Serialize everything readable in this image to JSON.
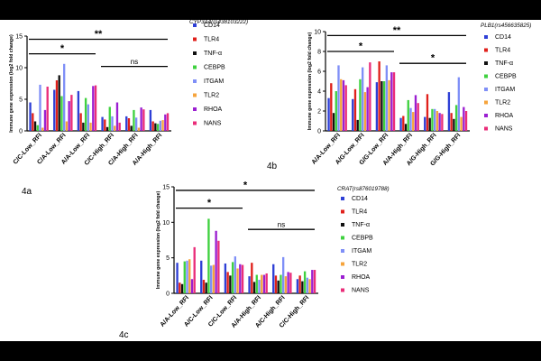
{
  "chart_data": [
    {
      "type": "bar",
      "panel_label": "4a",
      "gene_title": "CYP3A4(rs438103222)",
      "ylabel": "Immune gene expression (log2 fold change)",
      "ylim": [
        0,
        15
      ],
      "yticks": [
        0,
        5,
        10,
        15
      ],
      "categories": [
        "C/C-Low_RFI",
        "C/A-Low_RFI",
        "A/A-Low_RFI",
        "C/C-High_RFI",
        "C/A-High_RFI",
        "A/A-High_RFI"
      ],
      "series": [
        {
          "name": "CD14",
          "color": "#2e3fd6",
          "values": [
            4.5,
            6.5,
            6.3,
            2.2,
            2.3,
            3.3
          ]
        },
        {
          "name": "TLR4",
          "color": "#e0201b",
          "values": [
            2.8,
            8.0,
            2.8,
            1.8,
            2.0,
            1.5
          ]
        },
        {
          "name": "TNF-α",
          "color": "#111111",
          "values": [
            1.5,
            8.8,
            1.3,
            0.6,
            0.8,
            1.2
          ]
        },
        {
          "name": "CEBPB",
          "color": "#3fd13f",
          "values": [
            0.9,
            5.5,
            5.2,
            3.8,
            3.3,
            1.1
          ]
        },
        {
          "name": "ITGAM",
          "color": "#7f8ff7",
          "values": [
            7.3,
            10.6,
            4.2,
            2.3,
            2.1,
            1.6
          ]
        },
        {
          "name": "TLR2",
          "color": "#f6a43c",
          "values": [
            0.5,
            1.5,
            1.3,
            0.8,
            0.5,
            1.7
          ]
        },
        {
          "name": "RHOA",
          "color": "#9b1fd1",
          "values": [
            3.3,
            4.7,
            7.1,
            4.5,
            3.7,
            2.6
          ]
        },
        {
          "name": "NANS",
          "color": "#ea2d79",
          "values": [
            7.0,
            5.7,
            7.2,
            1.3,
            3.4,
            2.8
          ]
        }
      ],
      "annotations": [
        {
          "label": "**",
          "from": 0,
          "to": 5,
          "y": 14.5
        },
        {
          "label": "*",
          "from": 0,
          "to": 2,
          "y": 12.2
        },
        {
          "label": "ns",
          "from": 3,
          "to": 5,
          "y": 10.2
        }
      ]
    },
    {
      "type": "bar",
      "panel_label": "4b",
      "gene_title": "PLB1(rs456635825)",
      "ylabel": "Immune gene expression (log2 fold change)",
      "ylim": [
        0,
        10
      ],
      "yticks": [
        0,
        2,
        4,
        6,
        8,
        10
      ],
      "categories": [
        "A/A-Low_RFI",
        "A/G-Low_RFI",
        "G/G-Low_RFI",
        "A/A-High_RFI",
        "A/G-High_RFI",
        "G/G-High_RFI"
      ],
      "series": [
        {
          "name": "CD14",
          "color": "#2e3fd6",
          "values": [
            3.3,
            3.2,
            4.9,
            1.3,
            1.4,
            3.9
          ]
        },
        {
          "name": "TLR4",
          "color": "#e0201b",
          "values": [
            4.8,
            4.2,
            7.0,
            1.5,
            3.7,
            1.8
          ]
        },
        {
          "name": "TNF-α",
          "color": "#111111",
          "values": [
            1.8,
            1.1,
            5.0,
            0.7,
            1.3,
            1.2
          ]
        },
        {
          "name": "CEBPB",
          "color": "#3fd13f",
          "values": [
            4.0,
            5.2,
            5.0,
            3.1,
            2.2,
            2.6
          ]
        },
        {
          "name": "ITGAM",
          "color": "#7f8ff7",
          "values": [
            6.6,
            6.4,
            6.6,
            2.3,
            2.2,
            5.4
          ]
        },
        {
          "name": "TLR2",
          "color": "#f6a43c",
          "values": [
            5.2,
            3.9,
            5.1,
            1.9,
            2.0,
            1.4
          ]
        },
        {
          "name": "RHOA",
          "color": "#9b1fd1",
          "values": [
            5.1,
            4.4,
            5.9,
            3.6,
            1.8,
            2.4
          ]
        },
        {
          "name": "NANS",
          "color": "#ea2d79",
          "values": [
            4.6,
            6.9,
            5.9,
            2.8,
            1.7,
            2.0
          ]
        }
      ],
      "annotations": [
        {
          "label": "**",
          "from": 0,
          "to": 5,
          "y": 9.6
        },
        {
          "label": "*",
          "from": 0,
          "to": 2,
          "y": 8.0
        },
        {
          "label": "*",
          "from": 3,
          "to": 5,
          "y": 6.8
        }
      ]
    },
    {
      "type": "bar",
      "panel_label": "4c",
      "gene_title": "CRAT(rs876019788)",
      "ylabel": "Immune gene expression (log2 fold change)",
      "ylim": [
        0,
        15
      ],
      "yticks": [
        0,
        5,
        10,
        15
      ],
      "categories": [
        "A/A-Low_RFI",
        "A/C-Low_RFI",
        "C/C-Low_RFI",
        "A/A-High_RFI",
        "A/C-High_RFI",
        "C/C-High_RFI"
      ],
      "series": [
        {
          "name": "CD14",
          "color": "#2e3fd6",
          "values": [
            4.3,
            4.6,
            4.2,
            2.4,
            4.1,
            2.0
          ]
        },
        {
          "name": "TLR4",
          "color": "#e0201b",
          "values": [
            1.5,
            1.9,
            3.0,
            4.3,
            2.5,
            2.5
          ]
        },
        {
          "name": "TNF-α",
          "color": "#111111",
          "values": [
            1.3,
            1.5,
            2.5,
            1.6,
            1.8,
            1.7
          ]
        },
        {
          "name": "CEBPB",
          "color": "#3fd13f",
          "values": [
            4.5,
            10.5,
            4.4,
            2.6,
            2.6,
            3.1
          ]
        },
        {
          "name": "ITGAM",
          "color": "#7f8ff7",
          "values": [
            4.6,
            3.9,
            5.2,
            1.9,
            5.1,
            2.2
          ]
        },
        {
          "name": "TLR2",
          "color": "#f6a43c",
          "values": [
            4.8,
            4.0,
            3.5,
            2.6,
            2.4,
            2.0
          ]
        },
        {
          "name": "RHOA",
          "color": "#9b1fd1",
          "values": [
            2.0,
            8.8,
            4.1,
            2.6,
            3.0,
            3.3
          ]
        },
        {
          "name": "NANS",
          "color": "#ea2d79",
          "values": [
            6.5,
            7.4,
            4.0,
            2.8,
            2.9,
            3.3
          ]
        }
      ],
      "annotations": [
        {
          "label": "*",
          "from": 0,
          "to": 5,
          "y": 14.5
        },
        {
          "label": "*",
          "from": 0,
          "to": 2,
          "y": 12.0
        },
        {
          "label": "ns",
          "from": 3,
          "to": 5,
          "y": 9.0
        }
      ]
    }
  ]
}
